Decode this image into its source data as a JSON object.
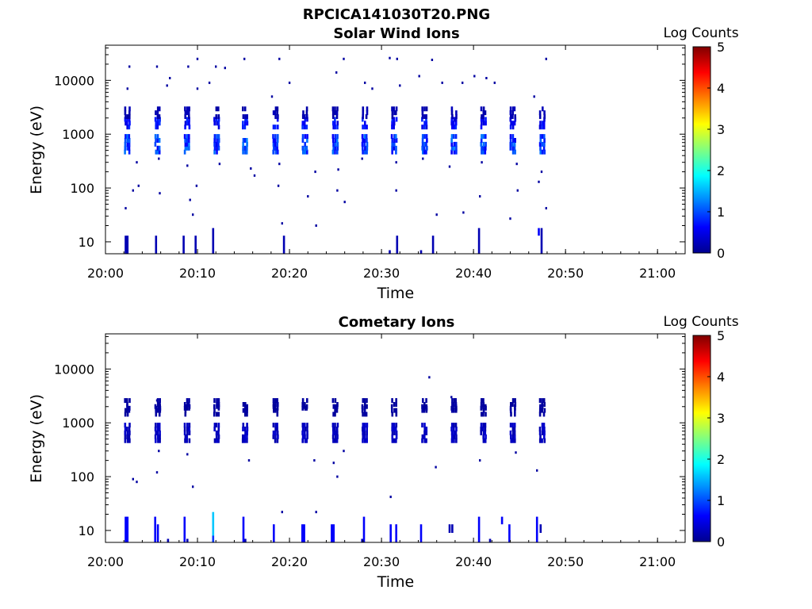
{
  "figure_title": "RPCICA141030T20.PNG",
  "colors": {
    "colormap": [
      "#00008f",
      "#0000ff",
      "#0080ff",
      "#00ffff",
      "#80ff80",
      "#ffff00",
      "#ff8000",
      "#ff0000",
      "#800000"
    ],
    "axis": "#000000"
  },
  "chart_data": [
    {
      "type": "heatmap",
      "title": "Solar Wind Ions",
      "xlabel": "Time",
      "ylabel": "Energy (eV)",
      "y_scale": "log",
      "ylim": [
        6,
        45000
      ],
      "xlim": [
        "20:00",
        "21:03"
      ],
      "x_ticks": [
        "20:00",
        "20:10",
        "20:20",
        "20:30",
        "20:40",
        "20:50",
        "21:00"
      ],
      "y_ticks": [
        "10",
        "100",
        "1000",
        "10000"
      ],
      "colorbar": {
        "label": "Log Counts",
        "range": [
          0,
          5
        ],
        "ticks": [
          "0",
          "1",
          "2",
          "3",
          "4",
          "5"
        ]
      },
      "sweeps_minutes": [
        2.3,
        5.6,
        8.8,
        12.0,
        15.1,
        18.4,
        21.6,
        24.9,
        28.1,
        31.3,
        34.6,
        37.8,
        41.0,
        44.2,
        47.4
      ],
      "peaks": [
        {
          "energy_ev": 650,
          "log_counts": 1.0
        },
        {
          "energy_ev": 1600,
          "log_counts": 0.7
        },
        {
          "energy_ev": 2500,
          "log_counts": 0.2
        }
      ],
      "low_energy_bars": [
        {
          "minute": 2.2,
          "e_from": 6,
          "e_to": 13,
          "log_counts": 0.2
        },
        {
          "minute": 2.4,
          "e_from": 6,
          "e_to": 13,
          "log_counts": 0.2
        },
        {
          "minute": 5.5,
          "e_from": 6,
          "e_to": 13,
          "log_counts": 0.2
        },
        {
          "minute": 8.5,
          "e_from": 6,
          "e_to": 13,
          "log_counts": 0.2
        },
        {
          "minute": 9.8,
          "e_from": 6,
          "e_to": 13,
          "log_counts": 0.2
        },
        {
          "minute": 11.7,
          "e_from": 6,
          "e_to": 18,
          "log_counts": 0.2
        },
        {
          "minute": 19.4,
          "e_from": 6,
          "e_to": 13,
          "log_counts": 0.2
        },
        {
          "minute": 30.9,
          "e_from": 6,
          "e_to": 7,
          "log_counts": 0.2
        },
        {
          "minute": 31.7,
          "e_from": 6,
          "e_to": 13,
          "log_counts": 0.2
        },
        {
          "minute": 34.3,
          "e_from": 6,
          "e_to": 7,
          "log_counts": 0.2
        },
        {
          "minute": 35.6,
          "e_from": 6,
          "e_to": 13,
          "log_counts": 0.2
        },
        {
          "minute": 40.6,
          "e_from": 6,
          "e_to": 18,
          "log_counts": 0.2
        },
        {
          "minute": 47.1,
          "e_from": 13,
          "e_to": 18,
          "log_counts": 0.6
        },
        {
          "minute": 47.4,
          "e_from": 6,
          "e_to": 18,
          "log_counts": 0.2
        }
      ],
      "scatter": [
        {
          "minute": 2.6,
          "energy_ev": 18000
        },
        {
          "minute": 5.6,
          "energy_ev": 18000
        },
        {
          "minute": 9.0,
          "energy_ev": 18000
        },
        {
          "minute": 10.0,
          "energy_ev": 25000
        },
        {
          "minute": 12.0,
          "energy_ev": 18000
        },
        {
          "minute": 13.0,
          "energy_ev": 17000
        },
        {
          "minute": 15.1,
          "energy_ev": 25000
        },
        {
          "minute": 18.9,
          "energy_ev": 25000
        },
        {
          "minute": 25.9,
          "energy_ev": 25000
        },
        {
          "minute": 30.9,
          "energy_ev": 26000
        },
        {
          "minute": 31.7,
          "energy_ev": 25000
        },
        {
          "minute": 35.5,
          "energy_ev": 24000
        },
        {
          "minute": 47.9,
          "energy_ev": 25000
        },
        {
          "minute": 2.4,
          "energy_ev": 7000
        },
        {
          "minute": 6.7,
          "energy_ev": 8000
        },
        {
          "minute": 7.0,
          "energy_ev": 11000
        },
        {
          "minute": 10.0,
          "energy_ev": 7000
        },
        {
          "minute": 11.3,
          "energy_ev": 9000
        },
        {
          "minute": 18.1,
          "energy_ev": 5000
        },
        {
          "minute": 20.0,
          "energy_ev": 9000
        },
        {
          "minute": 25.1,
          "energy_ev": 14000
        },
        {
          "minute": 28.2,
          "energy_ev": 9000
        },
        {
          "minute": 29.0,
          "energy_ev": 7000
        },
        {
          "minute": 32.0,
          "energy_ev": 8000
        },
        {
          "minute": 34.1,
          "energy_ev": 12000
        },
        {
          "minute": 36.6,
          "energy_ev": 9000
        },
        {
          "minute": 38.8,
          "energy_ev": 9000
        },
        {
          "minute": 40.1,
          "energy_ev": 12000
        },
        {
          "minute": 41.4,
          "energy_ev": 11000
        },
        {
          "minute": 42.3,
          "energy_ev": 9000
        },
        {
          "minute": 46.6,
          "energy_ev": 5000
        },
        {
          "minute": 3.4,
          "energy_ev": 300
        },
        {
          "minute": 5.8,
          "energy_ev": 350
        },
        {
          "minute": 8.9,
          "energy_ev": 260
        },
        {
          "minute": 12.4,
          "energy_ev": 280
        },
        {
          "minute": 15.8,
          "energy_ev": 230
        },
        {
          "minute": 16.2,
          "energy_ev": 170
        },
        {
          "minute": 18.9,
          "energy_ev": 280
        },
        {
          "minute": 22.8,
          "energy_ev": 200
        },
        {
          "minute": 25.3,
          "energy_ev": 220
        },
        {
          "minute": 27.9,
          "energy_ev": 350
        },
        {
          "minute": 31.6,
          "energy_ev": 300
        },
        {
          "minute": 34.5,
          "energy_ev": 350
        },
        {
          "minute": 37.4,
          "energy_ev": 250
        },
        {
          "minute": 40.9,
          "energy_ev": 300
        },
        {
          "minute": 44.7,
          "energy_ev": 280
        },
        {
          "minute": 47.4,
          "energy_ev": 200
        },
        {
          "minute": 3.0,
          "energy_ev": 90
        },
        {
          "minute": 3.6,
          "energy_ev": 110
        },
        {
          "minute": 5.9,
          "energy_ev": 80
        },
        {
          "minute": 9.2,
          "energy_ev": 60
        },
        {
          "minute": 9.9,
          "energy_ev": 110
        },
        {
          "minute": 18.8,
          "energy_ev": 110
        },
        {
          "minute": 22.0,
          "energy_ev": 70
        },
        {
          "minute": 25.2,
          "energy_ev": 90
        },
        {
          "minute": 31.6,
          "energy_ev": 90
        },
        {
          "minute": 40.7,
          "energy_ev": 70
        },
        {
          "minute": 44.8,
          "energy_ev": 90
        },
        {
          "minute": 47.1,
          "energy_ev": 130
        },
        {
          "minute": 2.2,
          "energy_ev": 42
        },
        {
          "minute": 9.5,
          "energy_ev": 32
        },
        {
          "minute": 19.2,
          "energy_ev": 22
        },
        {
          "minute": 22.9,
          "energy_ev": 20
        },
        {
          "minute": 26.0,
          "energy_ev": 55
        },
        {
          "minute": 36.0,
          "energy_ev": 32
        },
        {
          "minute": 38.9,
          "energy_ev": 35
        },
        {
          "minute": 44.0,
          "energy_ev": 27
        },
        {
          "minute": 47.9,
          "energy_ev": 42
        }
      ]
    },
    {
      "type": "heatmap",
      "title": "Cometary Ions",
      "xlabel": "Time",
      "ylabel": "Energy (eV)",
      "y_scale": "log",
      "ylim": [
        6,
        45000
      ],
      "xlim": [
        "20:00",
        "21:03"
      ],
      "x_ticks": [
        "20:00",
        "20:10",
        "20:20",
        "20:30",
        "20:40",
        "20:50",
        "21:00"
      ],
      "y_ticks": [
        "10",
        "100",
        "1000",
        "10000"
      ],
      "colorbar": {
        "label": "Log Counts",
        "range": [
          0,
          5
        ],
        "ticks": [
          "0",
          "1",
          "2",
          "3",
          "4",
          "5"
        ]
      },
      "sweeps_minutes": [
        2.3,
        5.6,
        8.8,
        12.0,
        15.1,
        18.4,
        21.6,
        24.9,
        28.1,
        31.3,
        34.6,
        37.8,
        41.0,
        44.2,
        47.4
      ],
      "peaks": [
        {
          "energy_ev": 650,
          "log_counts": 0.3
        },
        {
          "energy_ev": 1700,
          "log_counts": 0.1
        },
        {
          "energy_ev": 2200,
          "log_counts": 0.1
        }
      ],
      "low_energy_bars": [
        {
          "minute": 2.2,
          "e_from": 6,
          "e_to": 18,
          "log_counts": 0.6
        },
        {
          "minute": 2.4,
          "e_from": 6,
          "e_to": 18,
          "log_counts": 0.6
        },
        {
          "minute": 5.4,
          "e_from": 6,
          "e_to": 18,
          "log_counts": 0.6
        },
        {
          "minute": 5.7,
          "e_from": 6,
          "e_to": 13,
          "log_counts": 0.6
        },
        {
          "minute": 6.8,
          "e_from": 6,
          "e_to": 7,
          "log_counts": 0.2
        },
        {
          "minute": 8.6,
          "e_from": 6,
          "e_to": 18,
          "log_counts": 0.6
        },
        {
          "minute": 8.9,
          "e_from": 6,
          "e_to": 7,
          "log_counts": 0.2
        },
        {
          "minute": 11.7,
          "e_from": 8,
          "e_to": 22,
          "log_counts": 1.6
        },
        {
          "minute": 11.7,
          "e_from": 6,
          "e_to": 8,
          "log_counts": 0.9
        },
        {
          "minute": 15.0,
          "e_from": 6,
          "e_to": 18,
          "log_counts": 0.6
        },
        {
          "minute": 15.2,
          "e_from": 6,
          "e_to": 7,
          "log_counts": 0.2
        },
        {
          "minute": 18.3,
          "e_from": 6,
          "e_to": 13,
          "log_counts": 0.6
        },
        {
          "minute": 21.4,
          "e_from": 6,
          "e_to": 13,
          "log_counts": 0.6
        },
        {
          "minute": 21.6,
          "e_from": 6,
          "e_to": 13,
          "log_counts": 0.6
        },
        {
          "minute": 24.6,
          "e_from": 6,
          "e_to": 13,
          "log_counts": 0.6
        },
        {
          "minute": 24.8,
          "e_from": 6,
          "e_to": 13,
          "log_counts": 0.6
        },
        {
          "minute": 27.9,
          "e_from": 6,
          "e_to": 7,
          "log_counts": 0.2
        },
        {
          "minute": 28.1,
          "e_from": 6,
          "e_to": 18,
          "log_counts": 0.6
        },
        {
          "minute": 31.0,
          "e_from": 6,
          "e_to": 13,
          "log_counts": 0.6
        },
        {
          "minute": 31.6,
          "e_from": 6,
          "e_to": 13,
          "log_counts": 0.6
        },
        {
          "minute": 34.3,
          "e_from": 6,
          "e_to": 13,
          "log_counts": 0.6
        },
        {
          "minute": 37.4,
          "e_from": 9,
          "e_to": 13,
          "log_counts": 0.2
        },
        {
          "minute": 37.7,
          "e_from": 9,
          "e_to": 13,
          "log_counts": 0.2
        },
        {
          "minute": 40.6,
          "e_from": 6,
          "e_to": 18,
          "log_counts": 0.6
        },
        {
          "minute": 41.8,
          "e_from": 6,
          "e_to": 7,
          "log_counts": 0.2
        },
        {
          "minute": 43.1,
          "e_from": 13,
          "e_to": 18,
          "log_counts": 0.6
        },
        {
          "minute": 43.9,
          "e_from": 6,
          "e_to": 13,
          "log_counts": 0.6
        },
        {
          "minute": 46.9,
          "e_from": 6,
          "e_to": 18,
          "log_counts": 0.6
        },
        {
          "minute": 47.3,
          "e_from": 9,
          "e_to": 13,
          "log_counts": 0.2
        }
      ],
      "scatter": [
        {
          "minute": 35.2,
          "energy_ev": 7000
        },
        {
          "minute": 37.6,
          "energy_ev": 3000
        },
        {
          "minute": 5.6,
          "energy_ev": 2600
        },
        {
          "minute": 5.8,
          "energy_ev": 300
        },
        {
          "minute": 8.9,
          "energy_ev": 260
        },
        {
          "minute": 15.6,
          "energy_ev": 200
        },
        {
          "minute": 22.7,
          "energy_ev": 200
        },
        {
          "minute": 25.9,
          "energy_ev": 300
        },
        {
          "minute": 24.8,
          "energy_ev": 180
        },
        {
          "minute": 35.9,
          "energy_ev": 150
        },
        {
          "minute": 40.7,
          "energy_ev": 200
        },
        {
          "minute": 44.6,
          "energy_ev": 280
        },
        {
          "minute": 5.6,
          "energy_ev": 120
        },
        {
          "minute": 25.2,
          "energy_ev": 100
        },
        {
          "minute": 46.9,
          "energy_ev": 130
        },
        {
          "minute": 3.0,
          "energy_ev": 90
        },
        {
          "minute": 3.4,
          "energy_ev": 80
        },
        {
          "minute": 9.5,
          "energy_ev": 65
        },
        {
          "minute": 31.0,
          "energy_ev": 42
        },
        {
          "minute": 19.2,
          "energy_ev": 22
        },
        {
          "minute": 22.9,
          "energy_ev": 22
        }
      ]
    }
  ]
}
